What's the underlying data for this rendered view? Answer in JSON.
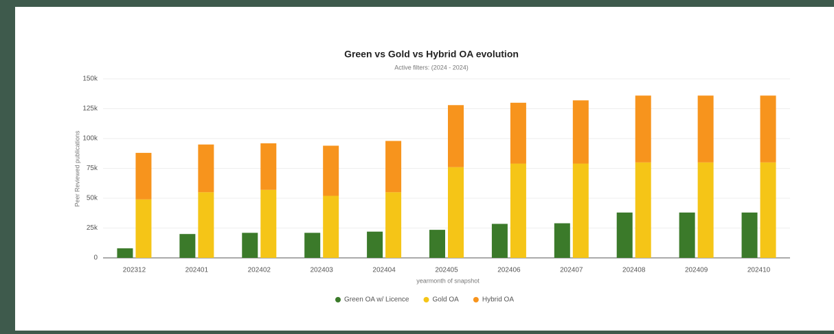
{
  "chart_data": {
    "type": "bar",
    "title": "Green vs Gold vs Hybrid OA evolution",
    "subtitle": "Active filters: (2024 - 2024)",
    "y_label": "Peer Reviewed publications",
    "x_label": "yearmonth of snapshot",
    "categories": [
      "202312",
      "202401",
      "202402",
      "202403",
      "202404",
      "202405",
      "202406",
      "202407",
      "202408",
      "202409",
      "202410"
    ],
    "series": [
      {
        "name": "Green OA w/ Licence",
        "color": "#3b7a2a",
        "stack": 0,
        "values": [
          8000,
          20000,
          21000,
          21000,
          22000,
          23500,
          28500,
          29000,
          38000,
          38000,
          38000
        ]
      },
      {
        "name": "Gold OA",
        "color": "#f5c517",
        "stack": 1,
        "values": [
          49000,
          55000,
          57000,
          52000,
          55000,
          76000,
          79000,
          79000,
          80000,
          80000,
          80000
        ]
      },
      {
        "name": "Hybrid OA",
        "color": "#f7941d",
        "stack": 1,
        "values": [
          39000,
          40000,
          39000,
          42000,
          43000,
          52000,
          51000,
          53000,
          56000,
          56000,
          56000
        ]
      }
    ],
    "ylim": [
      0,
      150000
    ],
    "yticks": [
      0,
      {
        "value": 25000,
        "label": "25k"
      },
      {
        "value": 50000,
        "label": "50k"
      },
      {
        "value": 75000,
        "label": "75k"
      },
      {
        "value": 100000,
        "label": "100k"
      },
      {
        "value": 125000,
        "label": "125k"
      },
      {
        "value": 150000,
        "label": "150k"
      }
    ],
    "grid": true
  }
}
